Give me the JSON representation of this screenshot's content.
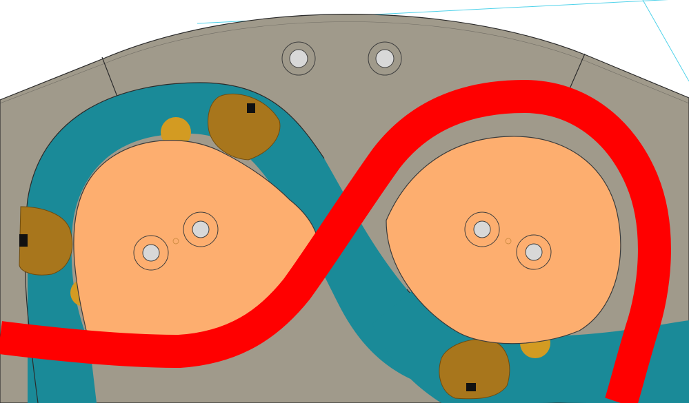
{
  "colors": {
    "background": "#ffffff",
    "housing": "#a09a8b",
    "housing_edge": "#2b2b2b",
    "track": "#1a8a98",
    "track_shade": "#127481",
    "carrier": "#a8761c",
    "carrier_dark": "#6e4c10",
    "roller": "#d39b22",
    "cam": "#fdae6f",
    "cam_edge": "#3b3b3b",
    "hole_fill": "#d8d8d8",
    "hole_ring": "#3d3d3d",
    "overlay_path": "#ff0000",
    "construction_line": "#4fd2ea"
  },
  "components": {
    "housing": "base-housing",
    "left_cam": "left-cam-lobe",
    "right_cam": "right-cam-lobe",
    "track": "figure-eight-track",
    "highlight": "highlighted-path"
  }
}
